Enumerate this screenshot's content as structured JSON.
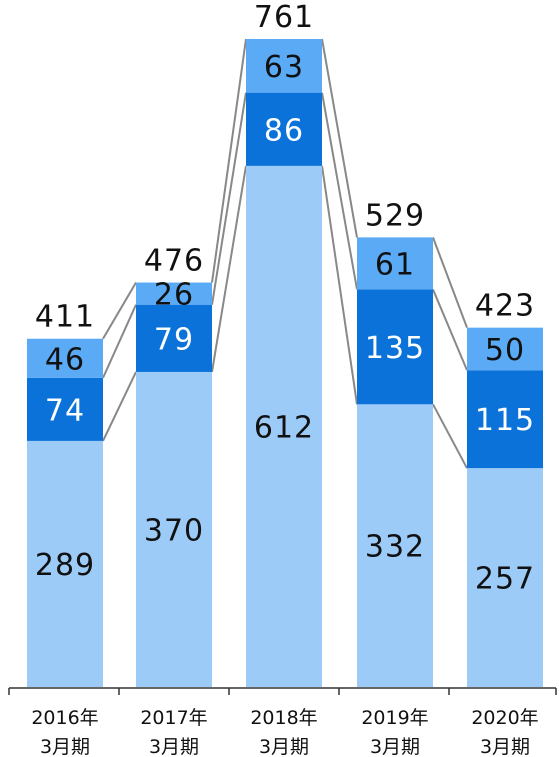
{
  "chart_data": {
    "type": "bar",
    "stacked": true,
    "categories": [
      [
        "2016年",
        "3月期"
      ],
      [
        "2017年",
        "3月期"
      ],
      [
        "2018年",
        "3月期"
      ],
      [
        "2019年",
        "3月期"
      ],
      [
        "2020年",
        "3月期"
      ]
    ],
    "series": [
      {
        "values": [
          289,
          370,
          612,
          332,
          257
        ],
        "color": "#9dcbf8",
        "label_color": "#111111"
      },
      {
        "values": [
          74,
          79,
          86,
          135,
          115
        ],
        "color": "#0a72d9",
        "label_color": "#ffffff"
      },
      {
        "values": [
          46,
          26,
          63,
          61,
          50
        ],
        "color": "#5aaaf5",
        "label_color": "#111111"
      }
    ],
    "totals": [
      411,
      476,
      761,
      529,
      423
    ],
    "ylim": [
      0,
      761
    ],
    "legend": false,
    "grid": false,
    "connector_lines": true,
    "connector_color": "#888888"
  }
}
